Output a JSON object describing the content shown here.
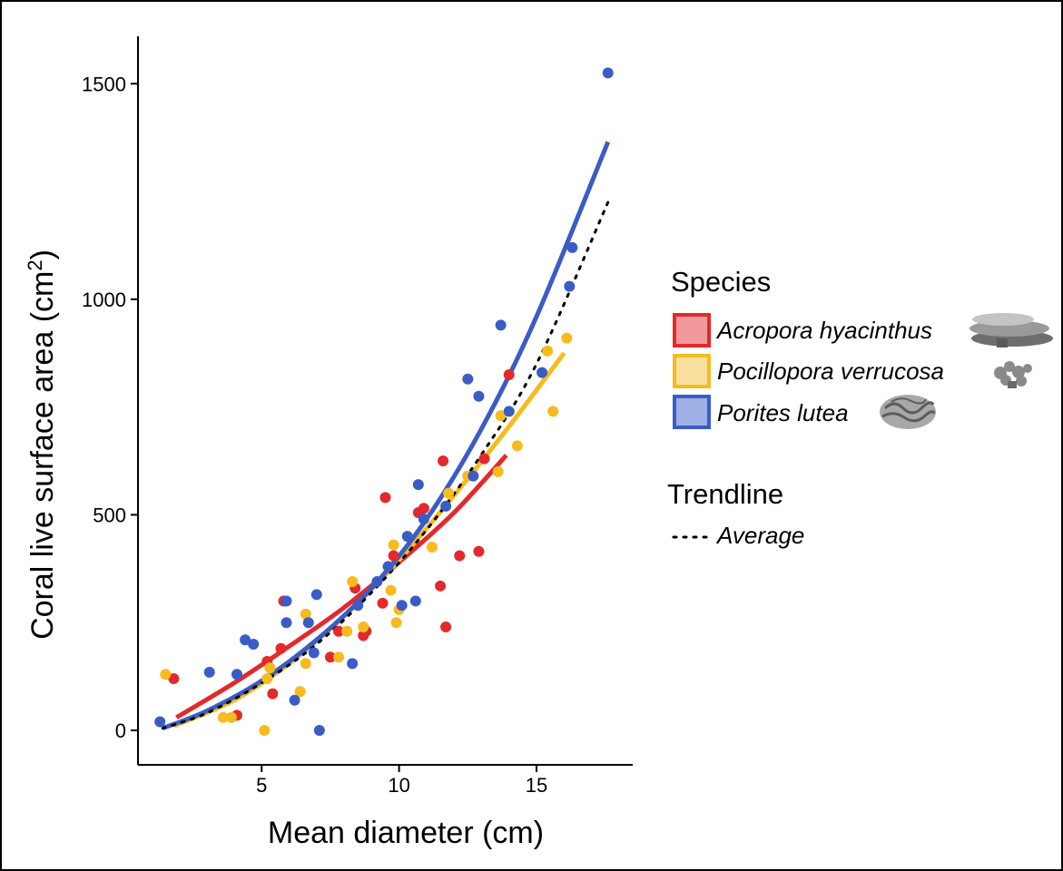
{
  "chart_data": {
    "type": "scatter",
    "xlabel": "Mean diameter (cm)",
    "ylabel_main": "Coral live surface area (cm",
    "ylabel_sup": "2",
    "ylabel_close": ")",
    "xlim": [
      0.5,
      18.5
    ],
    "ylim": [
      -80,
      1610
    ],
    "xticks": [
      5,
      10,
      15
    ],
    "yticks": [
      0,
      500,
      1000,
      1500
    ],
    "grid": false,
    "legend_position": "right",
    "legend": {
      "species_title": "Species",
      "trend_title": "Trendline",
      "trend_label": "Average"
    },
    "series": [
      {
        "name": "Acropora hyacinthus",
        "color": "#e3292b",
        "fill": "#f29a9b",
        "icon": "table-coral-icon",
        "points": [
          [
            1.8,
            120
          ],
          [
            4.1,
            35
          ],
          [
            5.2,
            160
          ],
          [
            5.4,
            85
          ],
          [
            5.7,
            190
          ],
          [
            5.8,
            300
          ],
          [
            7.5,
            170
          ],
          [
            7.8,
            230
          ],
          [
            8.4,
            330
          ],
          [
            8.7,
            220
          ],
          [
            8.8,
            230
          ],
          [
            9.4,
            295
          ],
          [
            9.5,
            540
          ],
          [
            9.8,
            405
          ],
          [
            10.7,
            505
          ],
          [
            10.9,
            515
          ],
          [
            11.5,
            335
          ],
          [
            11.6,
            625
          ],
          [
            11.7,
            240
          ],
          [
            12.2,
            405
          ],
          [
            12.9,
            415
          ],
          [
            13.1,
            630
          ],
          [
            14.0,
            825
          ]
        ],
        "fit": [
          [
            1.9,
            30
          ],
          [
            4,
            110
          ],
          [
            6,
            195
          ],
          [
            8,
            285
          ],
          [
            10,
            390
          ],
          [
            12,
            505
          ],
          [
            13.9,
            638
          ]
        ]
      },
      {
        "name": "Pocillopora verrucosa",
        "color": "#f7bb1e",
        "fill": "#f9e09e",
        "icon": "branching-coral-icon",
        "points": [
          [
            1.5,
            130
          ],
          [
            3.6,
            30
          ],
          [
            3.9,
            30
          ],
          [
            5.1,
            0
          ],
          [
            5.2,
            120
          ],
          [
            5.3,
            145
          ],
          [
            6.4,
            90
          ],
          [
            6.6,
            270
          ],
          [
            6.6,
            155
          ],
          [
            7.8,
            170
          ],
          [
            8.1,
            230
          ],
          [
            8.3,
            345
          ],
          [
            8.7,
            240
          ],
          [
            9.7,
            325
          ],
          [
            9.8,
            430
          ],
          [
            9.9,
            250
          ],
          [
            10.0,
            280
          ],
          [
            11.2,
            425
          ],
          [
            11.8,
            550
          ],
          [
            12.5,
            590
          ],
          [
            13.6,
            600
          ],
          [
            13.7,
            730
          ],
          [
            14.3,
            660
          ],
          [
            15.4,
            880
          ],
          [
            15.6,
            740
          ],
          [
            16.1,
            910
          ]
        ],
        "fit": [
          [
            1.8,
            10
          ],
          [
            4,
            70
          ],
          [
            6,
            155
          ],
          [
            8,
            265
          ],
          [
            10,
            395
          ],
          [
            12,
            545
          ],
          [
            14,
            705
          ],
          [
            16,
            875
          ]
        ]
      },
      {
        "name": "Porites lutea",
        "color": "#3a5cc7",
        "fill": "#9fb0e6",
        "icon": "massive-coral-icon",
        "points": [
          [
            1.3,
            20
          ],
          [
            3.1,
            135
          ],
          [
            4.1,
            130
          ],
          [
            4.4,
            210
          ],
          [
            4.7,
            200
          ],
          [
            5.9,
            300
          ],
          [
            5.9,
            250
          ],
          [
            6.2,
            70
          ],
          [
            6.7,
            250
          ],
          [
            6.9,
            180
          ],
          [
            7.0,
            315
          ],
          [
            7.1,
            0
          ],
          [
            8.3,
            155
          ],
          [
            8.5,
            290
          ],
          [
            9.2,
            345
          ],
          [
            9.6,
            380
          ],
          [
            10.1,
            290
          ],
          [
            10.3,
            450
          ],
          [
            10.6,
            300
          ],
          [
            10.7,
            570
          ],
          [
            10.9,
            490
          ],
          [
            11.7,
            520
          ],
          [
            12.5,
            815
          ],
          [
            12.7,
            590
          ],
          [
            12.9,
            775
          ],
          [
            13.7,
            940
          ],
          [
            14.0,
            740
          ],
          [
            15.2,
            830
          ],
          [
            16.2,
            1030
          ],
          [
            16.3,
            1120
          ],
          [
            17.6,
            1525
          ]
        ],
        "fit": [
          [
            1.4,
            5
          ],
          [
            3,
            45
          ],
          [
            5,
            115
          ],
          [
            7,
            210
          ],
          [
            9,
            330
          ],
          [
            11,
            490
          ],
          [
            13,
            700
          ],
          [
            15,
            960
          ],
          [
            17.6,
            1365
          ]
        ]
      }
    ],
    "average_fit": [
      [
        1.4,
        5
      ],
      [
        3,
        40
      ],
      [
        5,
        110
      ],
      [
        7,
        200
      ],
      [
        9,
        320
      ],
      [
        11,
        465
      ],
      [
        13,
        640
      ],
      [
        15,
        850
      ],
      [
        17.6,
        1225
      ]
    ]
  }
}
